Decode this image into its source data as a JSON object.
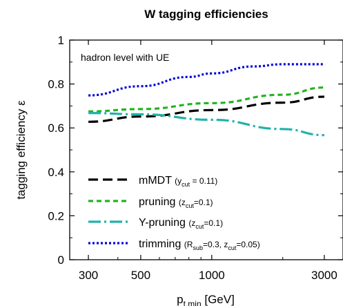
{
  "chart_data": {
    "type": "line",
    "title": "W tagging efficiencies",
    "annotation": "hadron level with UE",
    "xlabel": {
      "main": "p",
      "sub": "t,min",
      "rest": " [GeV]"
    },
    "ylabel": "tagging efficiency ε",
    "xscale": "log",
    "xlim": [
      250,
      3600
    ],
    "ylim": [
      0,
      1
    ],
    "xticks": [
      300,
      500,
      1000,
      3000
    ],
    "xtick_labels": [
      "300",
      "500",
      "1000",
      "3000"
    ],
    "yticks": [
      0,
      0.2,
      0.4,
      0.6,
      0.8,
      1
    ],
    "ytick_labels": [
      "0",
      "0.2",
      "0.4",
      "0.6",
      "0.8",
      "1"
    ],
    "grid": false,
    "legend_position": "lower-left",
    "series": [
      {
        "name": "mMDT",
        "legend_parts": [
          {
            "t": "mMDT ",
            "k": "main"
          },
          {
            "t": "(y",
            "k": "small"
          },
          {
            "t": "cut",
            "k": "sub"
          },
          {
            "t": " = 0.11)",
            "k": "small"
          }
        ],
        "color": "#000000",
        "dash": "long",
        "x": [
          300,
          500,
          1000,
          2000,
          3000
        ],
        "y": [
          0.628,
          0.652,
          0.681,
          0.715,
          0.742
        ]
      },
      {
        "name": "pruning",
        "legend_parts": [
          {
            "t": "pruning ",
            "k": "main"
          },
          {
            "t": "(z",
            "k": "small"
          },
          {
            "t": "cut",
            "k": "sub"
          },
          {
            "t": "=0.1)",
            "k": "small"
          }
        ],
        "color": "#22b322",
        "dash": "medium",
        "x": [
          300,
          500,
          1000,
          2000,
          3000
        ],
        "y": [
          0.675,
          0.686,
          0.713,
          0.751,
          0.784
        ]
      },
      {
        "name": "Y-pruning",
        "legend_parts": [
          {
            "t": "Y-pruning ",
            "k": "main"
          },
          {
            "t": "(z",
            "k": "small"
          },
          {
            "t": "cut",
            "k": "sub"
          },
          {
            "t": "=0.1)",
            "k": "small"
          }
        ],
        "color": "#20b2aa",
        "dash": "dashdot",
        "x": [
          300,
          500,
          1000,
          2000,
          3000
        ],
        "y": [
          0.668,
          0.662,
          0.637,
          0.595,
          0.567
        ]
      },
      {
        "name": "trimming",
        "legend_parts": [
          {
            "t": "trimming ",
            "k": "main"
          },
          {
            "t": "(R",
            "k": "small"
          },
          {
            "t": "sub",
            "k": "sub"
          },
          {
            "t": "=0.3, z",
            "k": "small"
          },
          {
            "t": "cut",
            "k": "sub"
          },
          {
            "t": "=0.05)",
            "k": "small"
          }
        ],
        "color": "#0000dd",
        "dash": "dotted",
        "x": [
          300,
          500,
          800,
          1000,
          1500,
          2000,
          3000
        ],
        "y": [
          0.748,
          0.79,
          0.832,
          0.848,
          0.88,
          0.89,
          0.89
        ]
      }
    ]
  }
}
